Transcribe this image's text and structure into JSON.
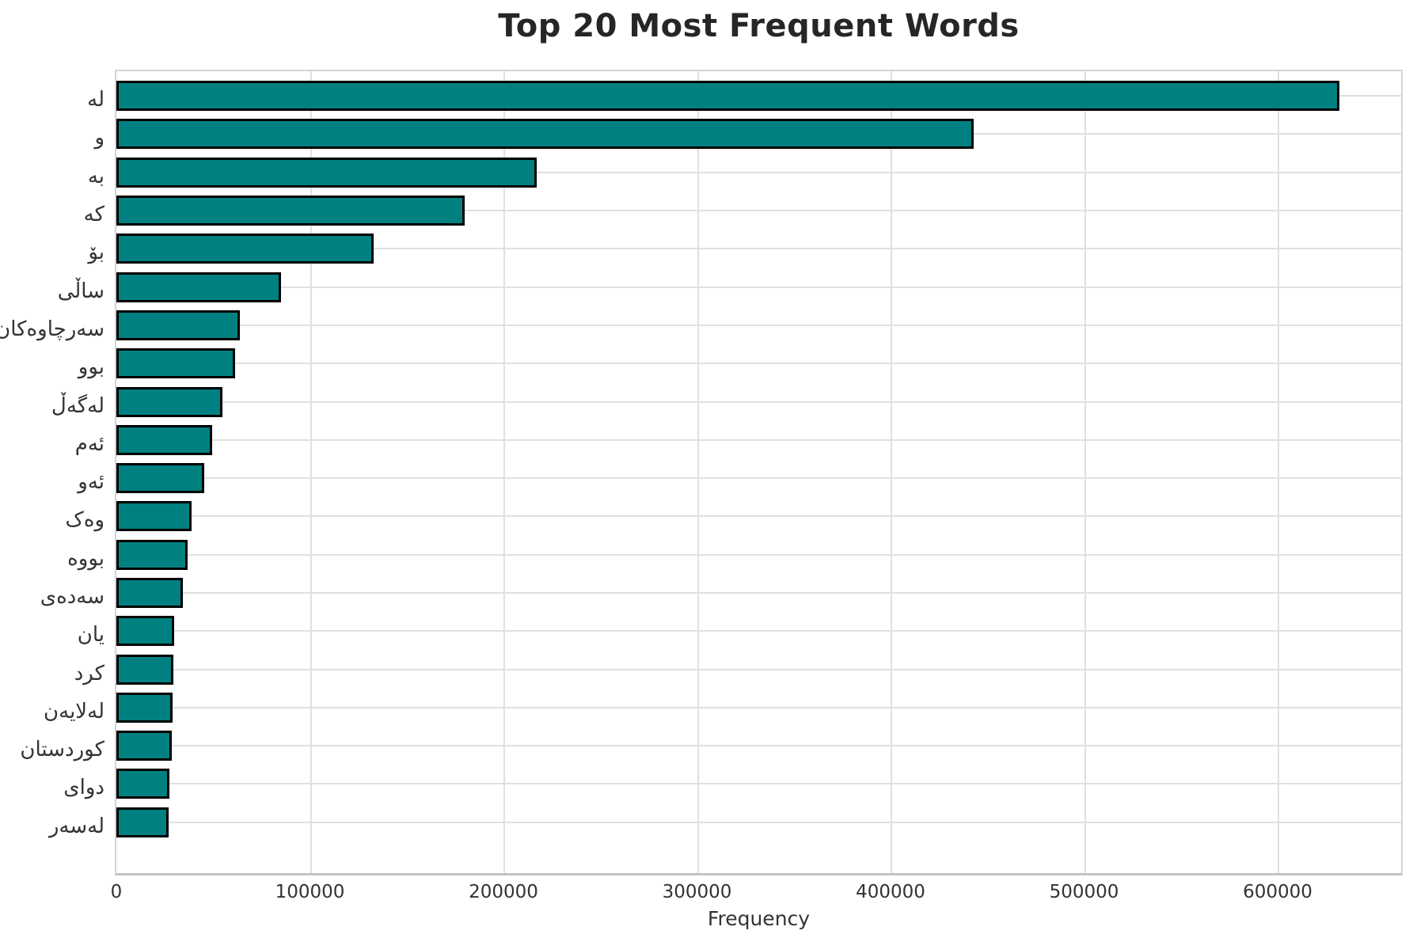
{
  "title": "Top 20 Most Frequent Words",
  "chart_data": {
    "type": "bar",
    "orientation": "horizontal",
    "title": "Top 20 Most Frequent Words",
    "xlabel": "Frequency",
    "ylabel": "",
    "categories": [
      "له",
      "و",
      "به",
      "که",
      "بۆ",
      "ساڵی",
      "سەرچاوەکان",
      "بوو",
      "لەگەڵ",
      "ئەم",
      "ئەو",
      "وەک",
      "بووە",
      "سەدەی",
      "یان",
      "کرد",
      "لەلایەن",
      "کوردستان",
      "دوای",
      "لەسەر"
    ],
    "values": [
      632000,
      443000,
      217000,
      180000,
      133000,
      85000,
      64000,
      61500,
      55000,
      49500,
      45500,
      39000,
      37000,
      34500,
      30000,
      29500,
      29000,
      28500,
      27500,
      27000
    ],
    "x_ticks": [
      0,
      100000,
      200000,
      300000,
      400000,
      500000,
      600000
    ],
    "xlim": [
      0,
      663800
    ],
    "grid": true,
    "legend": false,
    "bar_color": "#008080",
    "bar_edge_color": "#000000",
    "grid_color": "#e0e0e0",
    "text_color": "#333333",
    "title_color": "#262626"
  }
}
